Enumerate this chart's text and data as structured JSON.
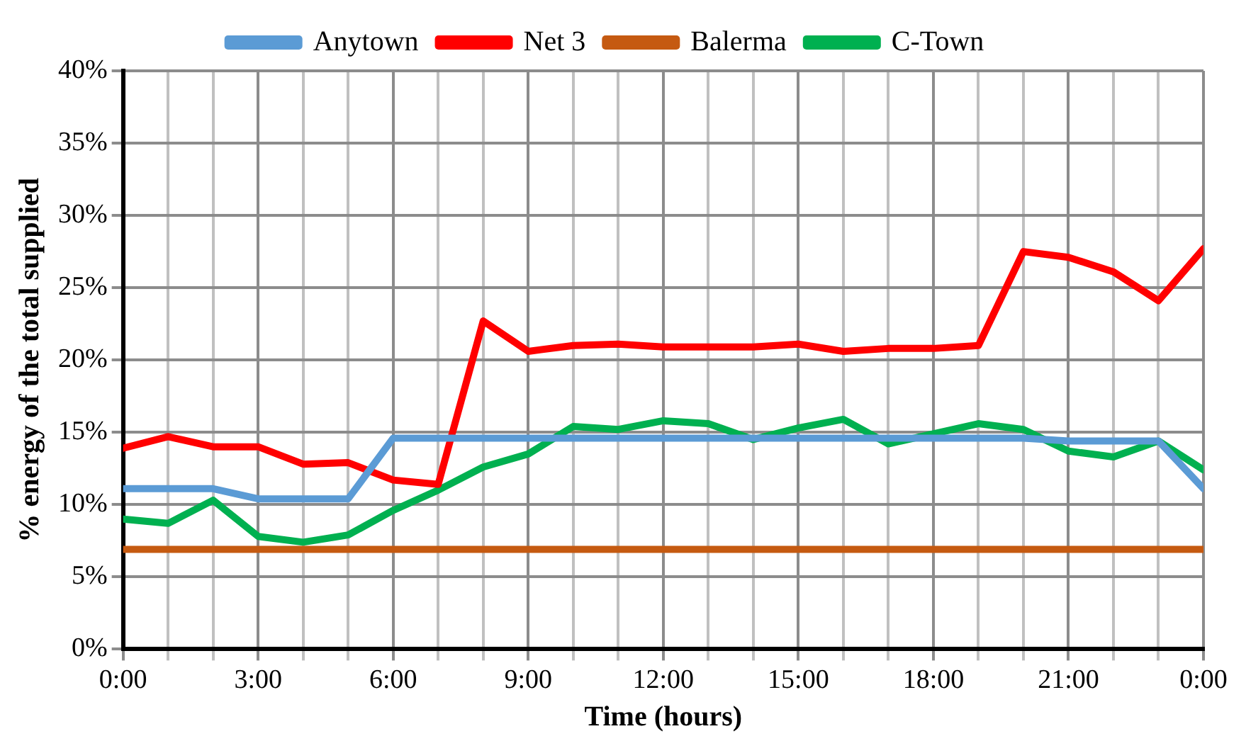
{
  "chart_data": {
    "type": "line",
    "xlabel": "Time (hours)",
    "ylabel": "% energy of the total supplied",
    "x": [
      0,
      1,
      2,
      3,
      4,
      5,
      6,
      7,
      8,
      9,
      10,
      11,
      12,
      13,
      14,
      15,
      16,
      17,
      18,
      19,
      20,
      21,
      22,
      23,
      24
    ],
    "series": [
      {
        "name": "Anytown",
        "color": "#5b9bd5",
        "values": [
          11.1,
          11.1,
          11.1,
          10.4,
          10.4,
          10.4,
          14.6,
          14.6,
          14.6,
          14.6,
          14.6,
          14.6,
          14.6,
          14.6,
          14.6,
          14.6,
          14.6,
          14.6,
          14.6,
          14.6,
          14.6,
          14.4,
          14.4,
          14.4,
          11.1
        ]
      },
      {
        "name": "Net 3",
        "color": "#ff0000",
        "values": [
          13.9,
          14.7,
          14.0,
          14.0,
          12.8,
          12.9,
          11.7,
          11.4,
          22.7,
          20.6,
          21.0,
          21.1,
          20.9,
          20.9,
          20.9,
          21.1,
          20.6,
          20.8,
          20.8,
          21.0,
          27.5,
          27.1,
          26.1,
          24.1,
          27.7
        ]
      },
      {
        "name": "Balerma",
        "color": "#c55a11",
        "values": [
          6.9,
          6.9,
          6.9,
          6.9,
          6.9,
          6.9,
          6.9,
          6.9,
          6.9,
          6.9,
          6.9,
          6.9,
          6.9,
          6.9,
          6.9,
          6.9,
          6.9,
          6.9,
          6.9,
          6.9,
          6.9,
          6.9,
          6.9,
          6.9,
          6.9
        ]
      },
      {
        "name": "C-Town",
        "color": "#00b050",
        "values": [
          9.0,
          8.7,
          10.3,
          7.8,
          7.4,
          7.9,
          9.6,
          11.0,
          12.6,
          13.5,
          15.4,
          15.2,
          15.8,
          15.6,
          14.5,
          15.3,
          15.9,
          14.2,
          14.9,
          15.6,
          15.2,
          13.7,
          13.3,
          14.4,
          12.4
        ]
      }
    ],
    "xlim": [
      0,
      24
    ],
    "xticks": [
      {
        "value": 0,
        "label": "0:00"
      },
      {
        "value": 1,
        "label": null
      },
      {
        "value": 2,
        "label": null
      },
      {
        "value": 3,
        "label": "3:00"
      },
      {
        "value": 4,
        "label": null
      },
      {
        "value": 5,
        "label": null
      },
      {
        "value": 6,
        "label": "6:00"
      },
      {
        "value": 7,
        "label": null
      },
      {
        "value": 8,
        "label": null
      },
      {
        "value": 9,
        "label": "9:00"
      },
      {
        "value": 10,
        "label": null
      },
      {
        "value": 11,
        "label": null
      },
      {
        "value": 12,
        "label": "12:00"
      },
      {
        "value": 13,
        "label": null
      },
      {
        "value": 14,
        "label": null
      },
      {
        "value": 15,
        "label": "15:00"
      },
      {
        "value": 16,
        "label": null
      },
      {
        "value": 17,
        "label": null
      },
      {
        "value": 18,
        "label": "18:00"
      },
      {
        "value": 19,
        "label": null
      },
      {
        "value": 20,
        "label": null
      },
      {
        "value": 21,
        "label": "21:00"
      },
      {
        "value": 22,
        "label": null
      },
      {
        "value": 23,
        "label": null
      },
      {
        "value": 24,
        "label": "0:00"
      }
    ],
    "ylim": [
      0,
      40
    ],
    "yticks": [
      {
        "value": 0,
        "label": "0%"
      },
      {
        "value": 5,
        "label": "5%"
      },
      {
        "value": 10,
        "label": "10%"
      },
      {
        "value": 15,
        "label": "15%"
      },
      {
        "value": 20,
        "label": "20%"
      },
      {
        "value": 25,
        "label": "25%"
      },
      {
        "value": 30,
        "label": "30%"
      },
      {
        "value": 35,
        "label": "35%"
      },
      {
        "value": 40,
        "label": "40%"
      }
    ],
    "grid": true,
    "legend": "top",
    "marker": "none",
    "line_style": "solid"
  }
}
